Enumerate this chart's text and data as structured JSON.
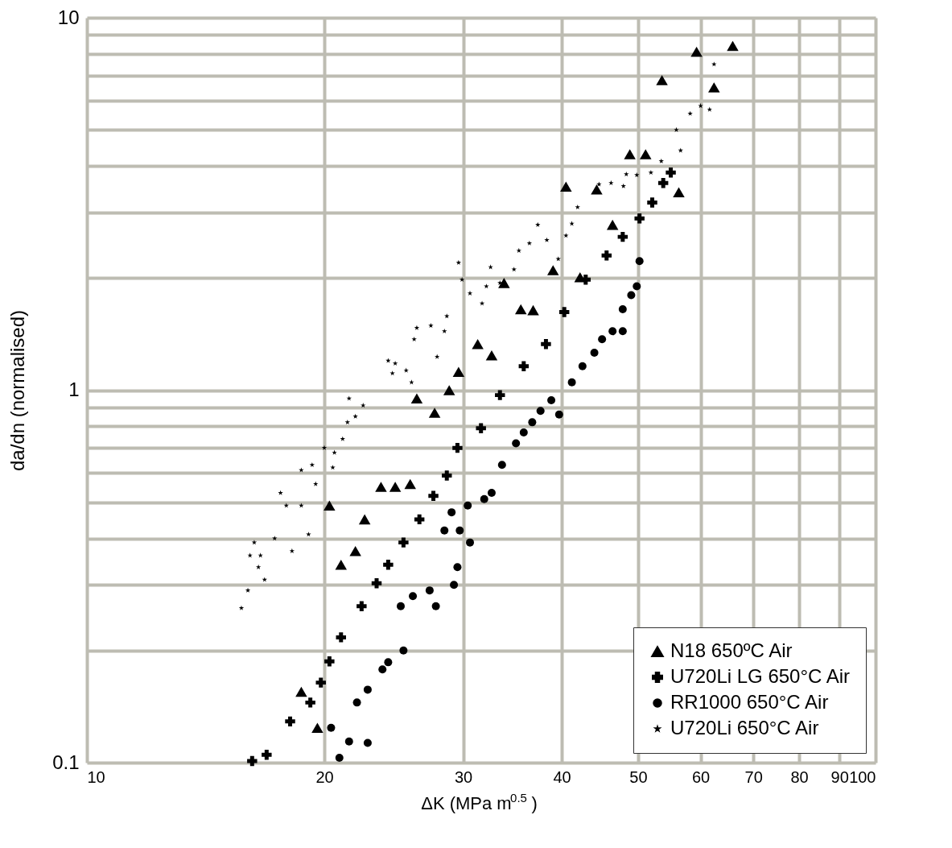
{
  "chart_data": {
    "type": "scatter",
    "xlabel": "ΔK (MPa m$^{0.5}$)",
    "ylabel": "da/dn (normalised)",
    "log": "xy",
    "grid": true,
    "legend": "bottom right",
    "xlim": [
      10,
      100
    ],
    "ylim": [
      0.1,
      10
    ],
    "xticks": [
      10,
      20,
      30,
      40,
      50,
      60,
      70,
      80,
      90,
      100
    ],
    "yticks": [
      0.1,
      {
        "value": 0.2,
        "label": null
      },
      {
        "value": 0.3,
        "label": null
      },
      {
        "value": 0.4,
        "label": null
      },
      {
        "value": 0.5,
        "label": null
      },
      {
        "value": 0.6,
        "label": null
      },
      {
        "value": 0.7,
        "label": null
      },
      {
        "value": 0.8,
        "label": null
      },
      {
        "value": 0.9,
        "label": null
      },
      1,
      {
        "value": 2,
        "label": null
      },
      {
        "value": 3,
        "label": null
      },
      {
        "value": 4,
        "label": null
      },
      {
        "value": 5,
        "label": null
      },
      {
        "value": 6,
        "label": null
      },
      {
        "value": 7,
        "label": null
      },
      {
        "value": 8,
        "label": null
      },
      {
        "value": 9,
        "label": null
      },
      10
    ],
    "series": [
      {
        "name": "N18 650ºC Air",
        "color": "#000000",
        "marker": "triangle",
        "x": [
          18.7,
          19.6,
          20.3,
          21.0,
          21.9,
          22.5,
          23.6,
          24.6,
          25.7,
          26.2,
          27.6,
          28.8,
          29.6,
          31.3,
          32.6,
          33.8,
          35.5,
          36.8,
          39.0,
          40.5,
          42.2,
          44.3,
          46.4,
          48.8,
          51.1,
          53.6,
          56.3,
          59.3,
          62.4,
          65.9
        ],
        "values": [
          0.155,
          0.124,
          0.49,
          0.34,
          0.37,
          0.45,
          0.55,
          0.55,
          0.56,
          0.95,
          0.87,
          1.0,
          1.12,
          1.33,
          1.24,
          1.94,
          1.65,
          1.64,
          2.1,
          3.52,
          2.01,
          3.46,
          2.78,
          4.3,
          4.3,
          6.8,
          3.4,
          8.1,
          6.5,
          8.4
        ]
      },
      {
        "name": "U720Li LG 650°C Air",
        "color": "#000000",
        "marker": "cross",
        "x": [
          16.2,
          16.9,
          18.1,
          19.2,
          19.8,
          20.3,
          21.0,
          22.3,
          23.3,
          24.1,
          25.2,
          26.4,
          27.5,
          28.6,
          29.5,
          31.6,
          33.4,
          35.8,
          38.2,
          40.3,
          42.9,
          45.6,
          47.8,
          50.2,
          52.1,
          53.8,
          55.0
        ],
        "values": [
          0.101,
          0.105,
          0.129,
          0.145,
          0.164,
          0.187,
          0.217,
          0.263,
          0.303,
          0.34,
          0.39,
          0.45,
          0.52,
          0.59,
          0.7,
          0.79,
          0.97,
          1.16,
          1.33,
          1.62,
          1.98,
          2.3,
          2.58,
          2.89,
          3.19,
          3.6,
          3.84
        ]
      },
      {
        "name": "RR1000 650°C Air",
        "color": "#000000",
        "marker": "circle",
        "x": [
          20.9,
          20.4,
          21.5,
          22.7,
          22.0,
          22.7,
          23.7,
          24.1,
          25.2,
          25.0,
          25.9,
          27.2,
          27.7,
          29.2,
          29.5,
          28.4,
          29.7,
          30.6,
          29.0,
          30.4,
          31.9,
          32.6,
          33.6,
          35.0,
          35.8,
          36.7,
          37.6,
          38.8,
          39.7,
          41.2,
          42.5,
          44.0,
          45.0,
          46.4,
          47.8,
          47.8,
          49.0,
          49.8,
          50.2
        ],
        "values": [
          0.103,
          0.124,
          0.114,
          0.113,
          0.145,
          0.157,
          0.178,
          0.186,
          0.2,
          0.263,
          0.28,
          0.29,
          0.263,
          0.3,
          0.335,
          0.42,
          0.42,
          0.39,
          0.47,
          0.49,
          0.51,
          0.53,
          0.63,
          0.72,
          0.77,
          0.82,
          0.88,
          0.94,
          0.86,
          1.05,
          1.16,
          1.26,
          1.37,
          1.44,
          1.44,
          1.65,
          1.8,
          1.9,
          2.22
        ]
      },
      {
        "name": "U720Li 650°C Air",
        "color": "#000000",
        "marker": "star",
        "x": [
          15.7,
          16.0,
          16.1,
          16.3,
          16.5,
          16.8,
          16.6,
          17.3,
          17.6,
          17.9,
          18.2,
          18.7,
          19.1,
          18.7,
          19.3,
          20.0,
          19.5,
          20.5,
          20.6,
          21.1,
          21.4,
          21.9,
          21.5,
          22.4,
          24.1,
          24.6,
          24.4,
          25.4,
          25.8,
          26.2,
          27.3,
          28.4,
          28.6,
          27.8,
          26.0,
          29.6,
          29.9,
          30.6,
          31.7,
          32.5,
          32.1,
          33.4,
          34.8,
          35.3,
          36.4,
          37.3,
          38.3,
          39.6,
          40.5,
          41.2,
          41.9,
          44.6,
          46.2,
          47.9,
          48.3,
          49.8,
          51.9,
          53.5,
          55.9,
          56.6,
          58.2,
          60.0,
          61.6,
          62.4
        ],
        "values": [
          0.26,
          0.29,
          0.36,
          0.39,
          0.335,
          0.31,
          0.36,
          0.4,
          0.53,
          0.49,
          0.37,
          0.49,
          0.41,
          0.61,
          0.63,
          0.7,
          0.56,
          0.62,
          0.68,
          0.74,
          0.82,
          0.85,
          0.95,
          0.91,
          1.2,
          1.18,
          1.11,
          1.13,
          1.05,
          1.47,
          1.49,
          1.44,
          1.58,
          1.23,
          1.37,
          2.2,
          1.98,
          1.82,
          1.71,
          2.14,
          1.9,
          1.94,
          2.11,
          2.37,
          2.48,
          2.78,
          2.53,
          2.25,
          2.6,
          2.8,
          3.1,
          3.57,
          3.6,
          3.53,
          3.8,
          3.78,
          3.84,
          4.12,
          5.0,
          4.4,
          5.53,
          5.8,
          5.67,
          7.5
        ]
      }
    ]
  }
}
